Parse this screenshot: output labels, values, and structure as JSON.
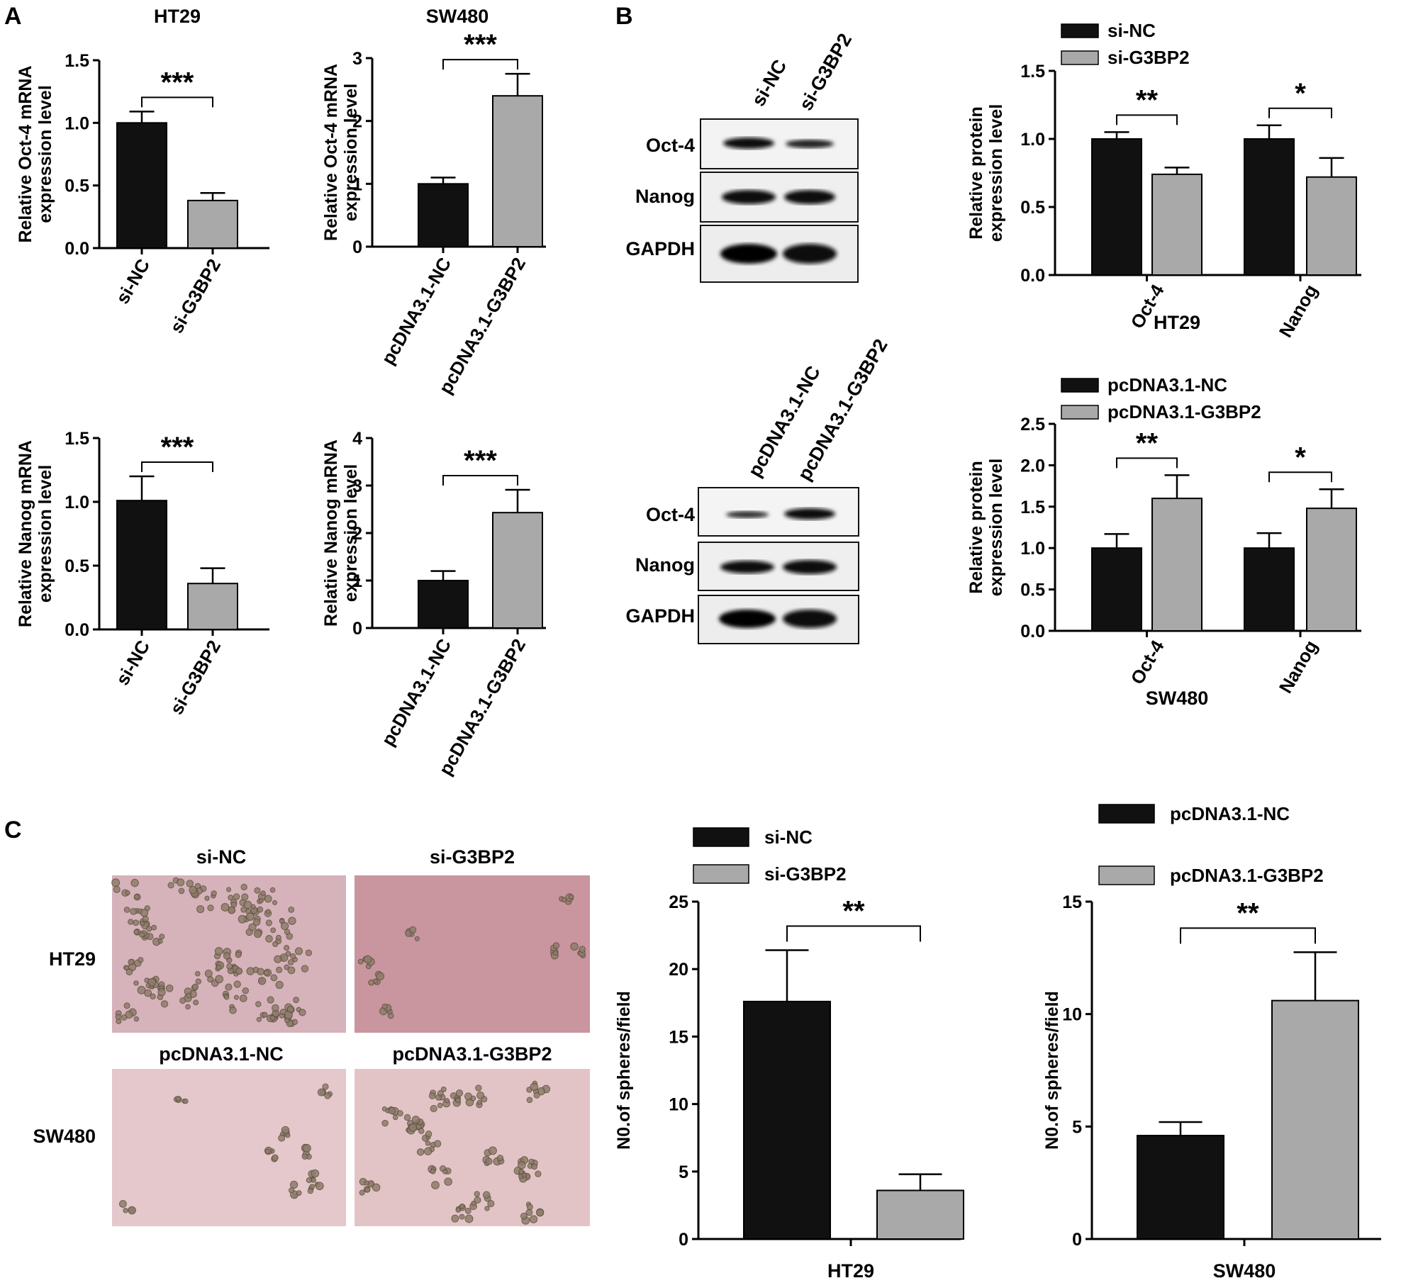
{
  "panel_labels": [
    "A",
    "B",
    "C"
  ],
  "colors": {
    "black_bar": "#111111",
    "gray_bar": "#a9a9a9"
  },
  "panel_a": {
    "charts": [
      {
        "id": "a1",
        "title": "HT29",
        "ylabel": [
          "Relative Oct-4 mRNA",
          "expression level"
        ],
        "yticks": [
          "0.0",
          "0.5",
          "1.0",
          "1.5"
        ],
        "ylim": [
          0,
          1.5
        ],
        "categories": [
          "si-NC",
          "si-G3BP2"
        ],
        "values": [
          1.0,
          0.38
        ],
        "errors": [
          0.09,
          0.06
        ],
        "sig": "***"
      },
      {
        "id": "a2",
        "title": "SW480",
        "ylabel": [
          "Relative Oct-4 mRNA",
          "expression level"
        ],
        "yticks": [
          "0",
          "1",
          "2",
          "3"
        ],
        "ylim": [
          0,
          3
        ],
        "categories": [
          "pcDNA3.1-NC",
          "pcDNA3.1-G3BP2"
        ],
        "values": [
          1.0,
          2.4
        ],
        "errors": [
          0.1,
          0.35
        ],
        "sig": "***"
      },
      {
        "id": "a3",
        "title": "",
        "ylabel": [
          "Relative Nanog mRNA",
          "expression level"
        ],
        "yticks": [
          "0.0",
          "0.5",
          "1.0",
          "1.5"
        ],
        "ylim": [
          0,
          1.5
        ],
        "categories": [
          "si-NC",
          "si-G3BP2"
        ],
        "values": [
          1.01,
          0.36
        ],
        "errors": [
          0.19,
          0.12
        ],
        "sig": "***"
      },
      {
        "id": "a4",
        "title": "",
        "ylabel": [
          "Relative Nanog mRNA",
          "expression level"
        ],
        "yticks": [
          "0",
          "1",
          "2",
          "3",
          "4"
        ],
        "ylim": [
          0,
          4
        ],
        "categories": [
          "pcDNA3.1-NC",
          "pcDNA3.1-G3BP2"
        ],
        "values": [
          1.0,
          2.43
        ],
        "errors": [
          0.2,
          0.48
        ],
        "sig": "***"
      }
    ]
  },
  "panel_b": {
    "blots": [
      {
        "id": "b1",
        "lanes": [
          "si-NC",
          "si-G3BP2"
        ],
        "rows": [
          "Oct-4",
          "Nanog",
          "GAPDH"
        ]
      },
      {
        "id": "b2",
        "lanes": [
          "pcDNA3.1-NC",
          "pcDNA3.1-G3BP2"
        ],
        "rows": [
          "Oct-4",
          "Nanog",
          "GAPDH"
        ]
      }
    ],
    "charts": [
      {
        "id": "b3",
        "xlabel": "HT29",
        "ylabel": [
          "Relative  protein",
          "expression level"
        ],
        "yticks": [
          "0.0",
          "0.5",
          "1.0",
          "1.5"
        ],
        "ylim": [
          0,
          1.5
        ],
        "legend": [
          "si-NC",
          "si-G3BP2"
        ],
        "groups": [
          "Oct-4",
          "Nanog"
        ],
        "series": [
          {
            "name": "si-NC",
            "values": [
              1.0,
              1.0
            ],
            "errors": [
              0.05,
              0.1
            ]
          },
          {
            "name": "si-G3BP2",
            "values": [
              0.74,
              0.72
            ],
            "errors": [
              0.05,
              0.14
            ]
          }
        ],
        "sig": [
          "**",
          "*"
        ]
      },
      {
        "id": "b4",
        "xlabel": "SW480",
        "ylabel": [
          "Relative  protein",
          "expression level"
        ],
        "yticks": [
          "0.0",
          "0.5",
          "1.0",
          "1.5",
          "2.0",
          "2.5"
        ],
        "ylim": [
          0,
          2.5
        ],
        "legend": [
          "pcDNA3.1-NC",
          "pcDNA3.1-G3BP2"
        ],
        "groups": [
          "Oct-4",
          "Nanog"
        ],
        "series": [
          {
            "name": "pcDNA3.1-NC",
            "values": [
              1.0,
              1.0
            ],
            "errors": [
              0.17,
              0.18
            ]
          },
          {
            "name": "pcDNA3.1-G3BP2",
            "values": [
              1.6,
              1.48
            ],
            "errors": [
              0.28,
              0.23
            ]
          }
        ],
        "sig": [
          "**",
          "*"
        ]
      }
    ]
  },
  "panel_c": {
    "micro": {
      "col_labels": [
        "si-NC",
        "si-G3BP2"
      ],
      "col_labels_2": [
        "pcDNA3.1-NC",
        "pcDNA3.1-G3BP2"
      ],
      "row_labels": [
        "HT29",
        "SW480"
      ]
    },
    "charts": [
      {
        "id": "c1",
        "xlabel": "HT29",
        "ylabel": "N0.of spheres/field",
        "yticks": [
          "0",
          "5",
          "10",
          "15",
          "20",
          "25"
        ],
        "ylim": [
          0,
          25
        ],
        "legend": [
          "si-NC",
          "si-G3BP2"
        ],
        "values": [
          17.6,
          3.6
        ],
        "errors": [
          3.8,
          1.2
        ],
        "sig": "**"
      },
      {
        "id": "c2",
        "xlabel": "SW480",
        "ylabel": "N0.of spheres/field",
        "yticks": [
          "0",
          "5",
          "10",
          "15"
        ],
        "ylim": [
          0,
          15
        ],
        "legend": [
          "pcDNA3.1-NC",
          "pcDNA3.1-G3BP2"
        ],
        "values": [
          4.6,
          10.6
        ],
        "errors": [
          0.6,
          2.15
        ],
        "sig": "**"
      }
    ]
  },
  "chart_data": [
    {
      "type": "bar",
      "title": "HT29",
      "ylabel": "Relative Oct-4 mRNA expression level",
      "categories": [
        "si-NC",
        "si-G3BP2"
      ],
      "values": [
        1.0,
        0.38
      ],
      "ylim": [
        0,
        1.5
      ]
    },
    {
      "type": "bar",
      "title": "SW480",
      "ylabel": "Relative Oct-4 mRNA expression level",
      "categories": [
        "pcDNA3.1-NC",
        "pcDNA3.1-G3BP2"
      ],
      "values": [
        1.0,
        2.4
      ],
      "ylim": [
        0,
        3
      ]
    },
    {
      "type": "bar",
      "ylabel": "Relative Nanog mRNA expression level",
      "categories": [
        "si-NC",
        "si-G3BP2"
      ],
      "values": [
        1.01,
        0.36
      ],
      "ylim": [
        0,
        1.5
      ]
    },
    {
      "type": "bar",
      "ylabel": "Relative Nanog mRNA expression level",
      "categories": [
        "pcDNA3.1-NC",
        "pcDNA3.1-G3BP2"
      ],
      "values": [
        1.0,
        2.43
      ],
      "ylim": [
        0,
        4
      ]
    },
    {
      "type": "bar",
      "xlabel": "HT29",
      "ylabel": "Relative  protein expression level",
      "categories": [
        "Oct-4",
        "Nanog"
      ],
      "series": [
        {
          "name": "si-NC",
          "values": [
            1.0,
            1.0
          ]
        },
        {
          "name": "si-G3BP2",
          "values": [
            0.74,
            0.72
          ]
        }
      ],
      "ylim": [
        0,
        1.5
      ]
    },
    {
      "type": "bar",
      "xlabel": "SW480",
      "ylabel": "Relative  protein expression level",
      "categories": [
        "Oct-4",
        "Nanog"
      ],
      "series": [
        {
          "name": "pcDNA3.1-NC",
          "values": [
            1.0,
            1.0
          ]
        },
        {
          "name": "pcDNA3.1-G3BP2",
          "values": [
            1.6,
            1.48
          ]
        }
      ],
      "ylim": [
        0,
        2.5
      ]
    },
    {
      "type": "bar",
      "xlabel": "HT29",
      "ylabel": "N0.of spheres/field",
      "categories": [
        "si-NC",
        "si-G3BP2"
      ],
      "values": [
        17.6,
        3.6
      ],
      "ylim": [
        0,
        25
      ]
    },
    {
      "type": "bar",
      "xlabel": "SW480",
      "ylabel": "N0.of spheres/field",
      "categories": [
        "pcDNA3.1-NC",
        "pcDNA3.1-G3BP2"
      ],
      "values": [
        4.6,
        10.6
      ],
      "ylim": [
        0,
        15
      ]
    }
  ]
}
